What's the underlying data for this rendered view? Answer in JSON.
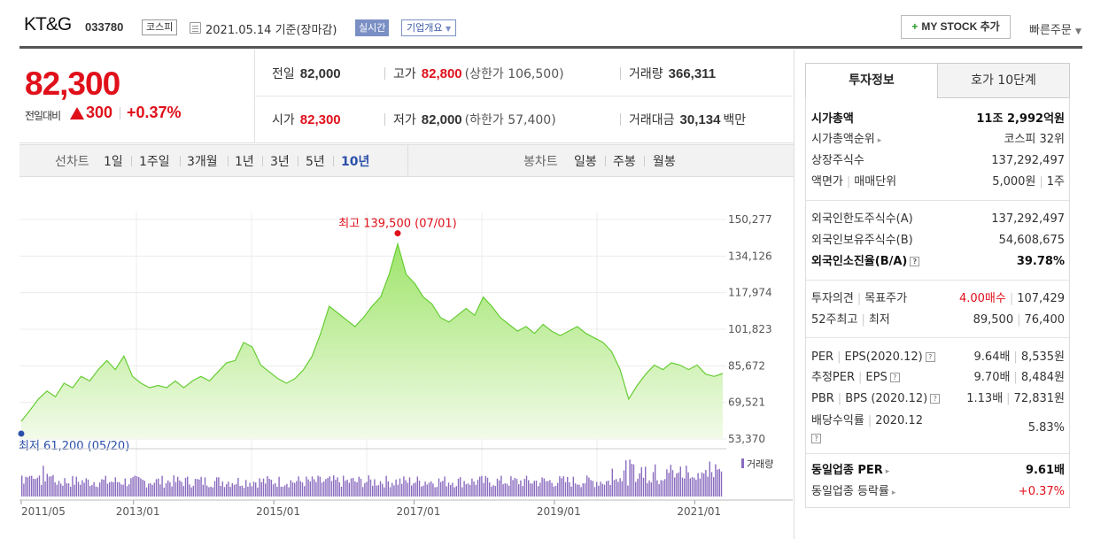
{
  "header": {
    "company_name": "KT&G",
    "company_code": "033780",
    "market": "코스피",
    "date": "2021.05.14 기준(장마감)",
    "realtime": "실시간",
    "overview": "기업개요",
    "mystock": "MY STOCK 추가",
    "quick_order": "빠른주문"
  },
  "price": {
    "current": "82,300",
    "change_label": "전일대비",
    "change_value": "300",
    "change_pct": "+0.37%",
    "prev_close_label": "전일",
    "prev_close": "82,000",
    "high_label": "고가",
    "high": "82,800",
    "upper_limit": "(상한가 106,500)",
    "volume_label": "거래량",
    "volume": "366,311",
    "open_label": "시가",
    "open": "82,300",
    "low_label": "저가",
    "low": "82,000",
    "lower_limit": "(하한가 57,400)",
    "amount_label": "거래대금",
    "amount": "30,134",
    "amount_unit": "백만"
  },
  "toolbar": {
    "line_label": "선차트",
    "periods": [
      "1일",
      "1주일",
      "3개월",
      "1년",
      "3년",
      "5년",
      "10년"
    ],
    "active_period": "10년",
    "candle_label": "봉차트",
    "candles": [
      "일봉",
      "주봉",
      "월봉"
    ]
  },
  "chart_data": {
    "type": "area",
    "y_ticks": [
      "150,277",
      "134,126",
      "117,974",
      "101,823",
      "85,672",
      "69,521",
      "53,370"
    ],
    "ylim": [
      53370,
      150277
    ],
    "x_ticks": [
      "2011/05",
      "2013/01",
      "2015/01",
      "2017/01",
      "2019/01",
      "2021/01"
    ],
    "x_tick_positions": [
      0,
      0.16,
      0.36,
      0.56,
      0.76,
      0.96
    ],
    "max_label": "최고 139,500 (07/01)",
    "max_value": 139500,
    "min_label": "최저 61,200 (05/20)",
    "min_value": 61200,
    "volume_legend": "거래량",
    "series": [
      {
        "values": [
          61200,
          66000,
          71000,
          74500,
          72000,
          78000,
          76000,
          81000,
          79000,
          84000,
          88000,
          84000,
          90000,
          81000,
          78000,
          76000,
          77000,
          76000,
          79000,
          76000,
          79000,
          81000,
          79000,
          83000,
          87000,
          88000,
          96000,
          94000,
          86000,
          83000,
          80000,
          78000,
          80000,
          84000,
          90000,
          100000,
          112000,
          109000,
          106000,
          103000,
          107000,
          112000,
          116000,
          126000,
          139500,
          126000,
          122000,
          116000,
          113000,
          107000,
          105000,
          108000,
          111000,
          108000,
          116000,
          112000,
          107000,
          104000,
          101000,
          103000,
          100000,
          104000,
          101000,
          99000,
          101000,
          103000,
          100000,
          98000,
          96000,
          92000,
          84000,
          71000,
          77000,
          82000,
          86000,
          84000,
          87000,
          86000,
          84000,
          86000,
          82000,
          81000,
          82300
        ]
      }
    ]
  },
  "panel": {
    "tab_info": "투자정보",
    "tab_quote": "호가 10단계",
    "market_cap_label": "시가총액",
    "market_cap": "11조 2,992억원",
    "market_cap_rank_label": "시가총액순위",
    "market_cap_rank": "코스피 32위",
    "listed_shares_label": "상장주식수",
    "listed_shares": "137,292,497",
    "par_label": "액면가",
    "unit_label": "매매단위",
    "par": "5,000원",
    "unit": "1주",
    "foreign_limit_label": "외국인한도주식수(A)",
    "foreign_limit": "137,292,497",
    "foreign_hold_label": "외국인보유주식수(B)",
    "foreign_hold": "54,608,675",
    "foreign_ratio_label": "외국인소진율(B/A)",
    "foreign_ratio": "39.78%",
    "opinion_label": "투자의견",
    "target_label": "목표주가",
    "opinion": "4.00매수",
    "target": "107,429",
    "w52_label": "52주최고",
    "w52_low_label": "최저",
    "w52_high": "89,500",
    "w52_low": "76,400",
    "per_label": "PER",
    "eps_label": "EPS(2020.12)",
    "per": "9.64배",
    "eps": "8,535원",
    "est_per_label": "추정PER",
    "est_eps_label": "EPS",
    "est_per": "9.70배",
    "est_eps": "8,484원",
    "pbr_label": "PBR",
    "bps_label": "BPS (2020.12)",
    "pbr": "1.13배",
    "bps": "72,831원",
    "div_label": "배당수익률",
    "div_period": "2020.12",
    "div": "5.83%",
    "ind_per_label": "동일업종 PER",
    "ind_per": "9.61배",
    "ind_change_label": "동일업종 등락률",
    "ind_change": "+0.37%"
  },
  "colors": {
    "up": "#e0101b",
    "accent": "#2b50a9",
    "area_line": "#66cc33",
    "volume": "#8a6bbf"
  }
}
